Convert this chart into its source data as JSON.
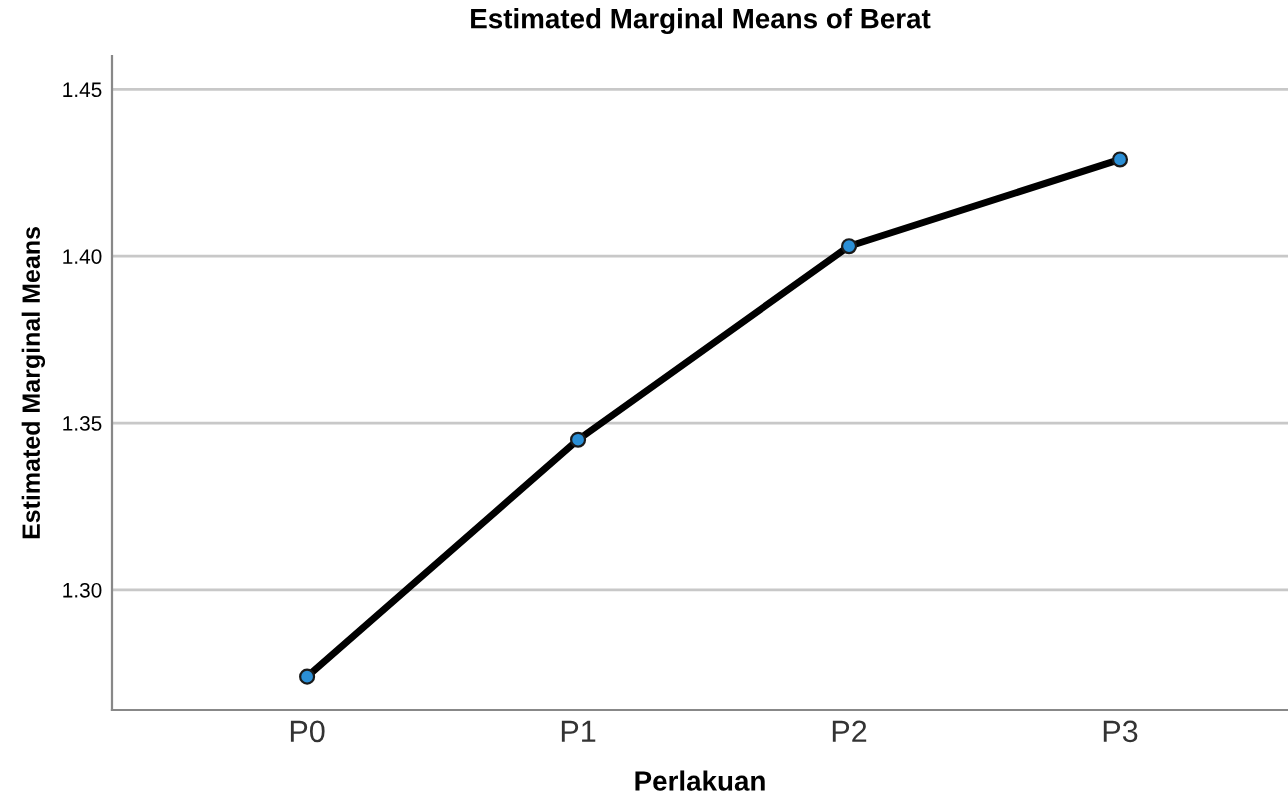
{
  "chart_data": {
    "type": "line",
    "title": "Estimated Marginal Means of Berat",
    "xlabel": "Perlakuan",
    "ylabel": "Estimated Marginal Means",
    "categories": [
      "P0",
      "P1",
      "P2",
      "P3"
    ],
    "series": [
      {
        "color": "#000000",
        "values": [
          1.274,
          1.345,
          1.403,
          1.429
        ]
      }
    ],
    "ylim": [
      1.264,
      1.46
    ],
    "yticks": [
      {
        "value": 1.3,
        "label": "1.30"
      },
      {
        "value": 1.35,
        "label": "1.35"
      },
      {
        "value": 1.4,
        "label": "1.40"
      },
      {
        "value": 1.45,
        "label": "1.45"
      }
    ],
    "grid": "y",
    "marker": "circle",
    "line_style": "solid"
  }
}
